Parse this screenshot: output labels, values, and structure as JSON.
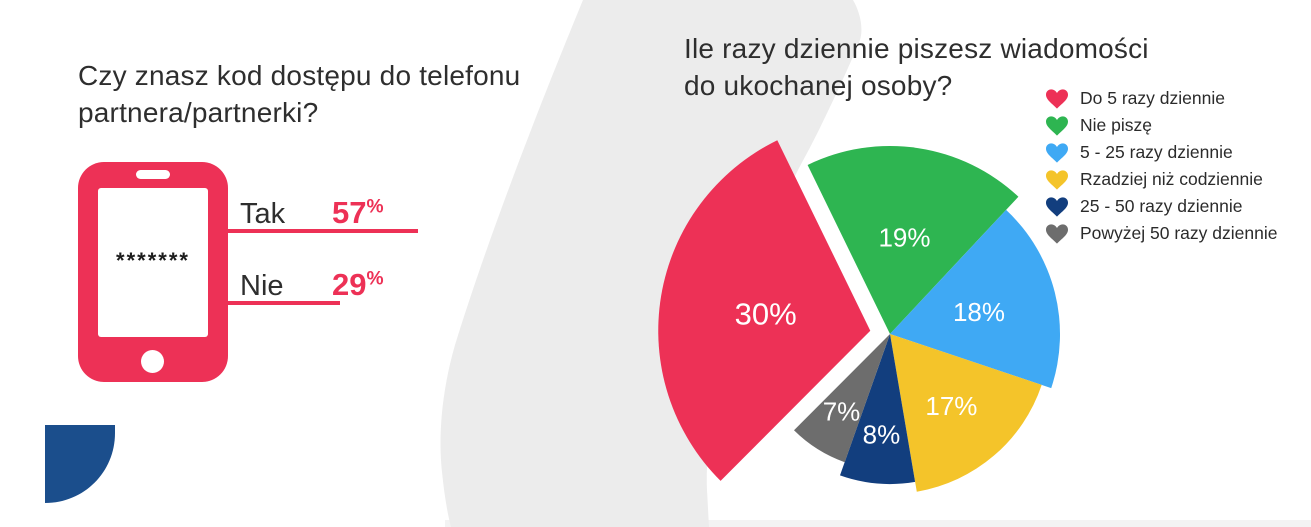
{
  "background": {
    "band_color": "#ECECEC",
    "bottom_strip_color": "#F3F3F3",
    "corner_shape_color": "#1B4E8C"
  },
  "left_panel": {
    "title_line1": "Czy znasz kod dostępu do telefonu",
    "title_line2": "partnera/partnerki?",
    "phone": {
      "passcode": "*******"
    },
    "results": [
      {
        "label": "Tak",
        "value": "57",
        "unit": "%"
      },
      {
        "label": "Nie",
        "value": "29",
        "unit": "%"
      }
    ],
    "accent_color": "#ED3156"
  },
  "right_panel": {
    "title_line1": "Ile razy dziennie piszesz wiadomości",
    "title_line2": "do ukochanej osoby?"
  },
  "chart_data": {
    "type": "pie",
    "title": "Ile razy dziennie piszesz wiadomości do ukochanej osoby?",
    "unit": "%",
    "legend_position": "top-right",
    "labels_on_slices": true,
    "slices": [
      {
        "label": "Do 5 razy dziennie",
        "value": 30,
        "color": "#ED3156"
      },
      {
        "label": "Nie piszę",
        "value": 19,
        "color": "#2EB551"
      },
      {
        "label": "5 - 25 razy dziennie",
        "value": 18,
        "color": "#3FA9F4"
      },
      {
        "label": "Rzadziej niż codziennie",
        "value": 17,
        "color": "#F4C42A"
      },
      {
        "label": "25 - 50 razy dziennie",
        "value": 8,
        "color": "#123E7E"
      },
      {
        "label": "Powyżej 50 razy dziennie",
        "value": 7,
        "color": "#6D6D6D"
      }
    ]
  }
}
